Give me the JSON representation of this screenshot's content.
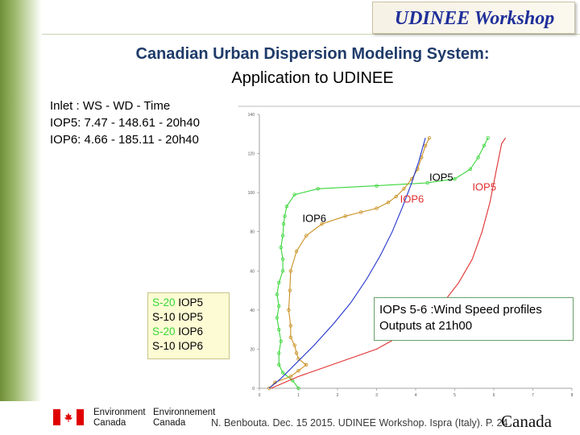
{
  "header": {
    "workshop_title": "UDINEE Workshop",
    "title_line1": "Canadian Urban Dispersion Modeling System:",
    "title_line2": "Application to UDINEE"
  },
  "inlet": {
    "line1": "Inlet : WS - WD - Time",
    "line2": "IOP5: 7.47 - 148.61 - 20h40",
    "line3": "IOP6: 4.66 - 185.11 - 20h40"
  },
  "legend": [
    {
      "prefix": "S-20 ",
      "prefix_color": "#39d639",
      "suffix": "IOP5"
    },
    {
      "prefix": "S-10 ",
      "prefix_color": "#000000",
      "suffix": "IOP5"
    },
    {
      "prefix": "S-20 ",
      "prefix_color": "#39d639",
      "suffix": "IOP6"
    },
    {
      "prefix": "S-10 ",
      "prefix_color": "#000000",
      "suffix": "IOP6"
    }
  ],
  "note": {
    "line1": "IOPs 5-6 :Wind Speed profiles",
    "line2": "Outputs at 21h00"
  },
  "footer": {
    "dept_en_1": "Environment",
    "dept_en_2": "Canada",
    "dept_fr_1": "Environnement",
    "dept_fr_2": "Canada",
    "citation": "N. Benbouta. Dec. 15 2015. UDINEE Workshop. Ispra (Italy). P. 24",
    "wordmark": "Canada"
  },
  "chart_data": {
    "type": "line",
    "title": "",
    "xlabel": "",
    "ylabel": "",
    "xlim": [
      0,
      8
    ],
    "ylim": [
      0,
      140
    ],
    "x_ticks": [
      0,
      1,
      2,
      3,
      4,
      5,
      6,
      7,
      8
    ],
    "y_ticks": [
      0,
      20,
      40,
      60,
      80,
      100,
      120,
      140
    ],
    "grid": false,
    "legend_position": "top-left",
    "annotations": [
      {
        "text": "IOP5",
        "x": 4.35,
        "y": 106,
        "color": "#000000"
      },
      {
        "text": "IOP5",
        "x": 5.45,
        "y": 101,
        "color": "#e03030"
      },
      {
        "text": "IOP6",
        "x": 3.6,
        "y": 95,
        "color": "#e03030"
      },
      {
        "text": "IOP6",
        "x": 1.1,
        "y": 85,
        "color": "#000000"
      }
    ],
    "series": [
      {
        "color": "#39d639",
        "marker": "circle",
        "points": [
          [
            1.0,
            0
          ],
          [
            0.85,
            4
          ],
          [
            0.6,
            8
          ],
          [
            0.5,
            12
          ],
          [
            0.5,
            18
          ],
          [
            0.55,
            24
          ],
          [
            0.5,
            30
          ],
          [
            0.45,
            36
          ],
          [
            0.5,
            42
          ],
          [
            0.45,
            48
          ],
          [
            0.5,
            54
          ],
          [
            0.6,
            60
          ],
          [
            0.6,
            66
          ],
          [
            0.55,
            72
          ],
          [
            0.6,
            78
          ],
          [
            0.62,
            84
          ],
          [
            0.65,
            88
          ],
          [
            0.7,
            93
          ],
          [
            0.9,
            99
          ],
          [
            1.5,
            102
          ],
          [
            3.0,
            103.5
          ],
          [
            4.3,
            105
          ],
          [
            5.0,
            107
          ],
          [
            5.4,
            112
          ],
          [
            5.6,
            118
          ],
          [
            5.75,
            124
          ],
          [
            5.85,
            128
          ]
        ]
      },
      {
        "color": "#c89020",
        "marker": "circle",
        "points": [
          [
            0.25,
            0
          ],
          [
            0.4,
            3
          ],
          [
            0.8,
            6
          ],
          [
            1.0,
            9
          ],
          [
            1.2,
            12
          ],
          [
            1.0,
            15
          ],
          [
            0.95,
            18
          ],
          [
            0.9,
            22
          ],
          [
            0.8,
            26
          ],
          [
            0.8,
            32
          ],
          [
            0.75,
            40
          ],
          [
            0.78,
            50
          ],
          [
            0.8,
            60
          ],
          [
            0.95,
            70
          ],
          [
            1.2,
            78
          ],
          [
            1.6,
            84
          ],
          [
            2.2,
            88
          ],
          [
            2.6,
            90
          ],
          [
            3.0,
            92
          ],
          [
            3.3,
            95
          ],
          [
            3.5,
            98
          ],
          [
            3.7,
            102
          ],
          [
            3.9,
            107
          ],
          [
            4.05,
            112
          ],
          [
            4.15,
            118
          ],
          [
            4.25,
            124
          ],
          [
            4.35,
            128
          ]
        ]
      },
      {
        "color": "#2233cc",
        "marker": "none",
        "points": [
          [
            0.25,
            0
          ],
          [
            0.55,
            5
          ],
          [
            0.9,
            12
          ],
          [
            1.4,
            22
          ],
          [
            1.9,
            33
          ],
          [
            2.35,
            44
          ],
          [
            2.75,
            56
          ],
          [
            3.1,
            68
          ],
          [
            3.4,
            80
          ],
          [
            3.65,
            92
          ],
          [
            3.88,
            104
          ],
          [
            4.08,
            116
          ],
          [
            4.25,
            128
          ]
        ]
      },
      {
        "color": "#e03030",
        "marker": "none",
        "points": [
          [
            0.3,
            0
          ],
          [
            1.0,
            6
          ],
          [
            2.0,
            13
          ],
          [
            3.0,
            20
          ],
          [
            3.9,
            30
          ],
          [
            4.6,
            41
          ],
          [
            5.1,
            54
          ],
          [
            5.45,
            66
          ],
          [
            5.7,
            80
          ],
          [
            5.9,
            95
          ],
          [
            6.05,
            110
          ],
          [
            6.2,
            125
          ],
          [
            6.3,
            128
          ]
        ]
      }
    ]
  }
}
